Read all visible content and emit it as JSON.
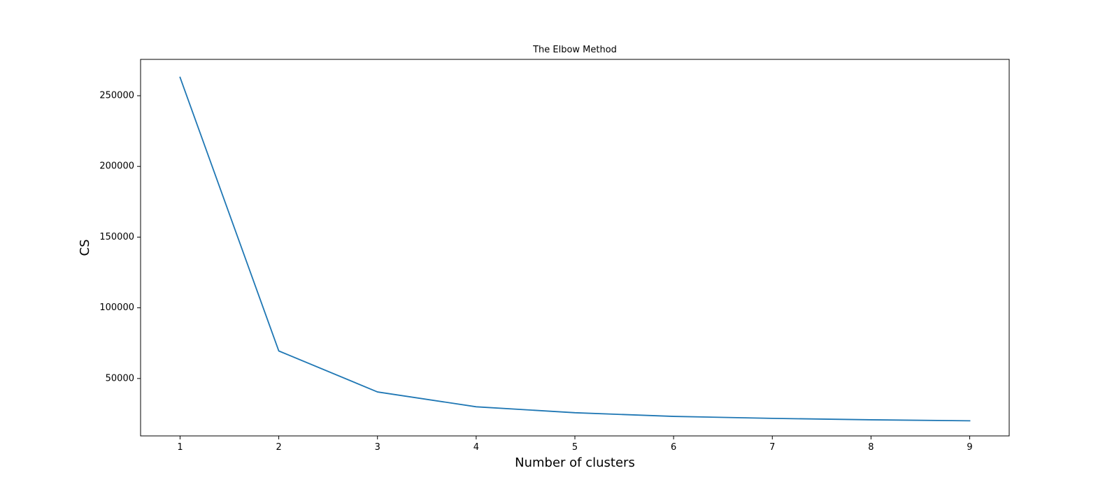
{
  "chart_data": {
    "type": "line",
    "title": "The Elbow Method",
    "xlabel": "Number of clusters",
    "ylabel": "CS",
    "x": [
      1,
      2,
      3,
      4,
      5,
      6,
      7,
      8,
      9
    ],
    "series": [
      {
        "values": [
          263000,
          69500,
          40500,
          30000,
          25800,
          23200,
          21800,
          20800,
          20100
        ],
        "color": "#1f77b4"
      }
    ],
    "xlim": [
      0.6,
      9.4
    ],
    "ylim": [
      9400,
      275700
    ],
    "xticks": [
      1,
      2,
      3,
      4,
      5,
      6,
      7,
      8,
      9
    ],
    "yticks": [
      50000,
      100000,
      150000,
      200000,
      250000
    ],
    "grid": false,
    "legend": false
  }
}
